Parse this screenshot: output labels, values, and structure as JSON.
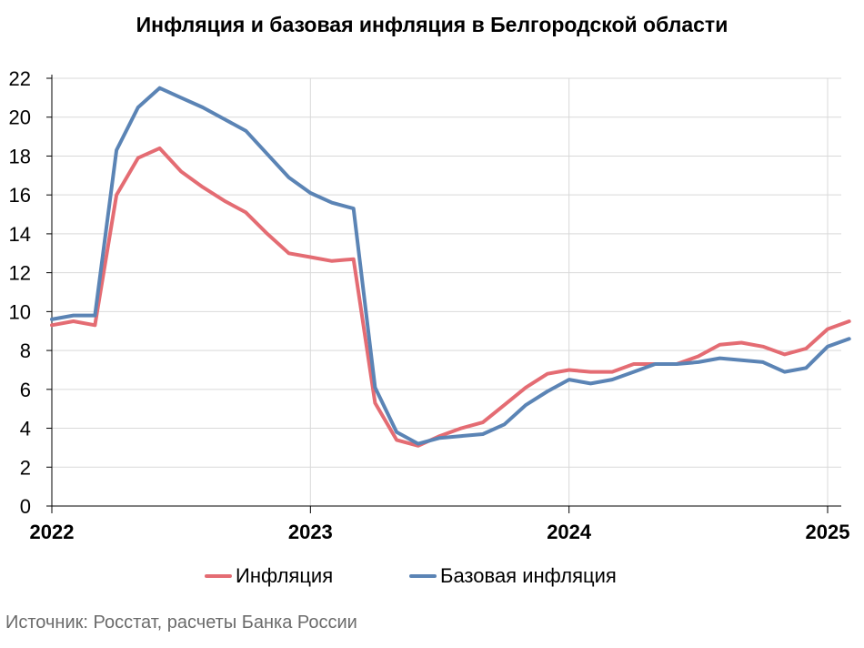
{
  "chart_data": {
    "type": "line",
    "title": "Инфляция и базовая инфляция в Белгородской области",
    "xlabel": "",
    "ylabel": "",
    "ylim": [
      0,
      22
    ],
    "yticks": [
      "0",
      "2",
      "4",
      "6",
      "8",
      "10",
      "12",
      "14",
      "16",
      "18",
      "20",
      "22"
    ],
    "xlim": [
      "2022-01",
      "2025-02"
    ],
    "xtick_labels": [
      "2022",
      "2023",
      "2024",
      "2025"
    ],
    "grid": true,
    "legend_position": "bottom",
    "months": [
      "2022-01",
      "2022-02",
      "2022-03",
      "2022-04",
      "2022-05",
      "2022-06",
      "2022-07",
      "2022-08",
      "2022-09",
      "2022-10",
      "2022-11",
      "2022-12",
      "2023-01",
      "2023-02",
      "2023-03",
      "2023-04",
      "2023-05",
      "2023-06",
      "2023-07",
      "2023-08",
      "2023-09",
      "2023-10",
      "2023-11",
      "2023-12",
      "2024-01",
      "2024-02",
      "2024-03",
      "2024-04",
      "2024-05",
      "2024-06",
      "2024-07",
      "2024-08",
      "2024-09",
      "2024-10",
      "2024-11",
      "2024-12",
      "2025-01",
      "2025-02"
    ],
    "series": [
      {
        "name": "Инфляция",
        "color": "#e46c73",
        "values": [
          9.3,
          9.5,
          9.3,
          16.0,
          17.9,
          18.4,
          17.2,
          16.4,
          15.7,
          15.1,
          14.0,
          13.0,
          12.8,
          12.6,
          12.7,
          5.3,
          3.4,
          3.1,
          3.6,
          4.0,
          4.3,
          5.2,
          6.1,
          6.8,
          7.0,
          6.9,
          6.9,
          7.3,
          7.3,
          7.3,
          7.7,
          8.3,
          8.4,
          8.2,
          7.8,
          8.1,
          9.1,
          9.5
        ]
      },
      {
        "name": "Базовая инфляция",
        "color": "#5b84b5",
        "values": [
          9.6,
          9.8,
          9.8,
          18.3,
          20.5,
          21.5,
          21.0,
          20.5,
          19.9,
          19.3,
          18.1,
          16.9,
          16.1,
          15.6,
          15.3,
          6.1,
          3.8,
          3.2,
          3.5,
          3.6,
          3.7,
          4.2,
          5.2,
          5.9,
          6.5,
          6.3,
          6.5,
          6.9,
          7.3,
          7.3,
          7.4,
          7.6,
          7.5,
          7.4,
          6.9,
          7.1,
          8.2,
          8.6
        ]
      }
    ]
  },
  "legend": {
    "inflation_label": "Инфляция",
    "core_label": "Базовая инфляция"
  },
  "source": "Источник: Росстат, расчеты Банка России"
}
